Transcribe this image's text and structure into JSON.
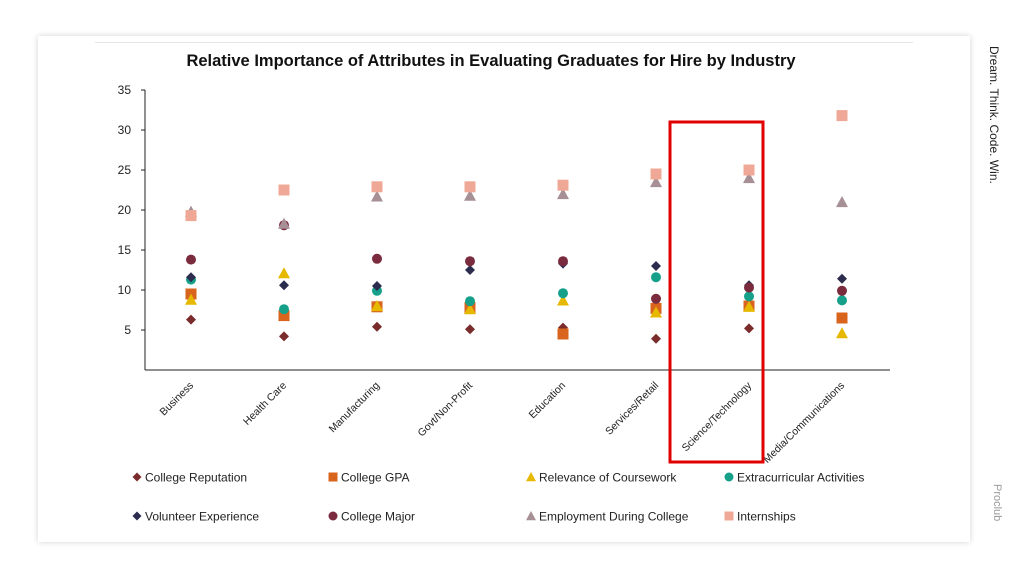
{
  "side_label": "Dream. Think. Code. Win.",
  "side_label_2": "Proclub",
  "colors": {
    "highlight_box": "#e00000"
  },
  "chart_data": {
    "type": "scatter",
    "title": "Relative Importance of Attributes in Evaluating Graduates for Hire by Industry",
    "categories": [
      "Business",
      "Health Care",
      "Manufacturing",
      "Govt/Non-Profit",
      "Education",
      "Services/Retail",
      "Science/Technology",
      "Media/Communications"
    ],
    "ylim": [
      0,
      35
    ],
    "yticks": [
      5,
      10,
      15,
      20,
      25,
      30,
      35
    ],
    "highlighted_category": "Science/Technology",
    "legend_position": "bottom",
    "series": [
      {
        "name": "College Reputation",
        "marker": "diamond",
        "color": "#7a2b2b",
        "values": [
          6.3,
          4.2,
          5.4,
          5.1,
          5.3,
          3.9,
          5.2,
          null
        ]
      },
      {
        "name": "College GPA",
        "marker": "square",
        "color": "#d9641e",
        "values": [
          9.5,
          6.8,
          7.9,
          7.8,
          4.5,
          7.7,
          8.0,
          6.5
        ]
      },
      {
        "name": "Relevance of Coursework",
        "marker": "triangle",
        "color": "#e6b800",
        "values": [
          8.8,
          12.1,
          8.0,
          7.6,
          8.7,
          7.2,
          7.9,
          4.6
        ]
      },
      {
        "name": "Extracurricular Activities",
        "marker": "circle",
        "color": "#16a08a",
        "values": [
          11.3,
          7.6,
          9.9,
          8.6,
          9.6,
          11.6,
          9.2,
          8.7
        ]
      },
      {
        "name": "Volunteer Experience",
        "marker": "diamond",
        "color": "#2c2c4e",
        "values": [
          11.6,
          10.6,
          10.5,
          12.5,
          13.3,
          13.0,
          10.6,
          11.4
        ]
      },
      {
        "name": "College Major",
        "marker": "circle",
        "color": "#7a2b3d",
        "values": [
          13.8,
          18.1,
          13.9,
          13.6,
          13.6,
          8.9,
          10.3,
          9.9
        ]
      },
      {
        "name": "Employment During College",
        "marker": "triangle",
        "color": "#a69096",
        "values": [
          19.8,
          18.3,
          21.7,
          21.8,
          22.0,
          23.5,
          24.0,
          21.0
        ]
      },
      {
        "name": "Internships",
        "marker": "square",
        "color": "#f0a896",
        "values": [
          19.3,
          22.5,
          22.9,
          22.9,
          23.1,
          24.5,
          25.0,
          31.8
        ]
      }
    ]
  }
}
